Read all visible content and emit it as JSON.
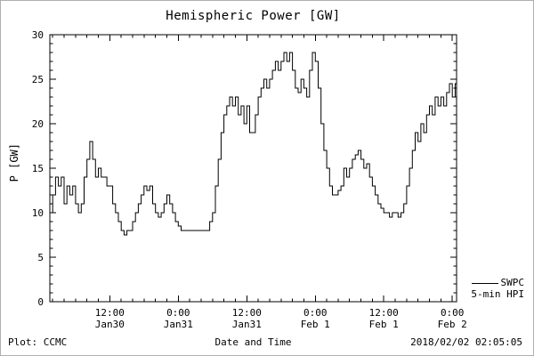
{
  "chart_data": {
    "type": "line",
    "title": "Hemispheric Power [GW]",
    "xlabel": "Date and Time",
    "ylabel": "P [GW]",
    "ylim": [
      0,
      30
    ],
    "yticks": [
      0,
      5,
      10,
      15,
      20,
      25,
      30
    ],
    "xlim_hours_from_jan30_00": [
      1.5,
      72.75
    ],
    "xticks": [
      {
        "hours": 12,
        "time": "12:00",
        "date": "Jan30"
      },
      {
        "hours": 24,
        "time": "0:00",
        "date": "Jan31"
      },
      {
        "hours": 36,
        "time": "12:00",
        "date": "Jan31"
      },
      {
        "hours": 48,
        "time": "0:00",
        "date": "Feb 1"
      },
      {
        "hours": 60,
        "time": "12:00",
        "date": "Feb 1"
      },
      {
        "hours": 72,
        "time": "0:00",
        "date": "Feb 2"
      }
    ],
    "grid": false,
    "line_color": "#000000",
    "legend": {
      "source": "SWPC",
      "series": "5-min HPI",
      "position": "outside-right-bottom"
    },
    "footer": {
      "left": "Plot: CCMC",
      "center": "Date and Time",
      "right": "2018/02/02 02:05:05"
    },
    "series": [
      {
        "name": "SWPC 5-min HPI",
        "x_hours": [
          1.5,
          2,
          2.5,
          3,
          3.5,
          4,
          4.5,
          5,
          5.5,
          6,
          6.5,
          7,
          7.5,
          8,
          8.5,
          9,
          9.5,
          10,
          10.5,
          11,
          11.5,
          12,
          12.5,
          13,
          13.5,
          14,
          14.5,
          15,
          15.5,
          16,
          16.5,
          17,
          17.5,
          18,
          18.5,
          19,
          19.5,
          20,
          20.5,
          21,
          21.5,
          22,
          22.5,
          23,
          23.5,
          24,
          24.5,
          25,
          25.5,
          26,
          26.5,
          27,
          27.5,
          28,
          28.5,
          29,
          29.5,
          30,
          30.5,
          31,
          31.5,
          32,
          32.5,
          33,
          33.5,
          34,
          34.5,
          35,
          35.5,
          36,
          36.5,
          37,
          37.5,
          38,
          38.5,
          39,
          39.5,
          40,
          40.5,
          41,
          41.5,
          42,
          42.5,
          43,
          43.5,
          44,
          44.5,
          45,
          45.5,
          46,
          46.5,
          47,
          47.5,
          48,
          48.5,
          49,
          49.5,
          50,
          50.5,
          51,
          51.5,
          52,
          52.5,
          53,
          53.5,
          54,
          54.5,
          55,
          55.5,
          56,
          56.5,
          57,
          57.5,
          58,
          58.5,
          59,
          59.5,
          60,
          60.5,
          61,
          61.5,
          62,
          62.5,
          63,
          63.5,
          64,
          64.5,
          65,
          65.5,
          66,
          66.5,
          67,
          67.5,
          68,
          68.5,
          69,
          69.5,
          70,
          70.5,
          71,
          71.5,
          72,
          72.5
        ],
        "values": [
          10,
          12,
          14,
          13,
          14,
          11,
          13,
          12,
          13,
          11,
          10,
          11,
          14,
          16,
          18,
          16,
          14,
          15,
          14,
          14,
          13,
          13,
          11,
          10,
          9,
          8,
          7.5,
          8,
          8,
          9,
          10,
          11,
          12,
          13,
          12.5,
          13,
          11,
          10,
          9.5,
          10,
          11,
          12,
          11,
          10,
          9,
          8.5,
          8,
          8,
          8,
          8,
          8,
          8,
          8,
          8,
          8,
          8,
          9,
          10,
          13,
          16,
          19,
          21,
          22,
          23,
          22,
          23,
          21,
          22,
          20,
          22,
          19,
          19,
          21,
          23,
          24,
          25,
          24,
          25,
          26,
          27,
          26,
          27,
          28,
          27,
          28,
          26,
          24,
          23.5,
          25,
          24,
          23,
          26,
          28,
          27,
          24,
          20,
          17,
          15,
          13,
          12,
          12,
          12.5,
          13,
          15,
          14,
          15,
          16,
          16.5,
          17,
          16,
          15,
          15.5,
          14,
          13,
          12,
          11,
          10.5,
          10,
          10,
          9.5,
          10,
          10,
          9.5,
          10,
          11,
          13,
          15,
          17,
          19,
          18,
          20,
          19,
          21,
          22,
          21,
          23,
          22,
          23,
          22,
          23.5,
          24.5,
          23,
          24.5
        ]
      }
    ]
  }
}
